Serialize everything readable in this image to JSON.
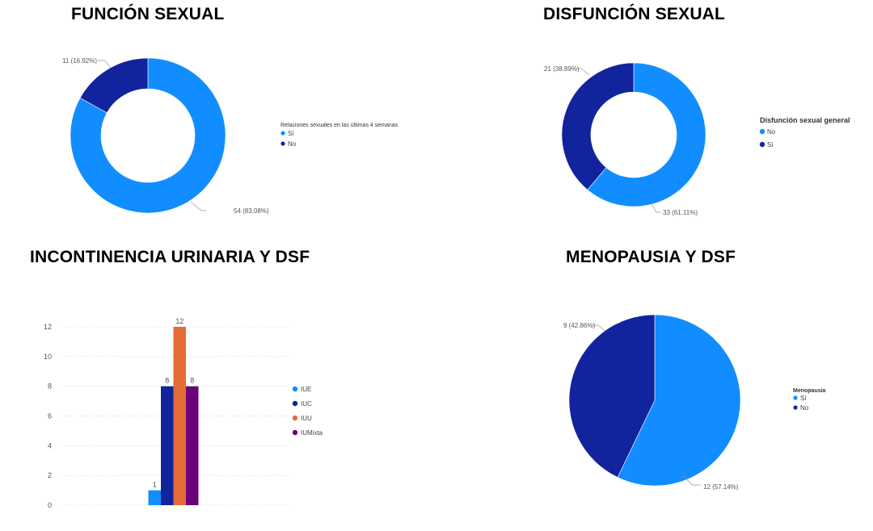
{
  "titles": {
    "funcion": "FUNCIÓN SEXUAL",
    "disfuncion": "DISFUNCIÓN SEXUAL",
    "incontinencia": "INCONTINENCIA URINARIA Y DSF",
    "menopausia": "MENOPAUSIA Y DSF"
  },
  "colors": {
    "light_blue": "#118DFF",
    "dark_blue": "#12239E",
    "orange": "#E66C37",
    "purple": "#6B007B"
  },
  "chart_data": [
    {
      "type": "pie",
      "variant": "donut",
      "title": "FUNCIÓN SEXUAL",
      "legend_title": "Relaciones sexuales en las últimas 4 semanas",
      "slices": [
        {
          "label": "Sí",
          "value": 54,
          "data_label": "54 (83.08%)",
          "color": "#118DFF"
        },
        {
          "label": "No",
          "value": 11,
          "data_label": "11 (16.92%)",
          "color": "#12239E"
        }
      ]
    },
    {
      "type": "pie",
      "variant": "donut",
      "title": "DISFUNCIÓN SEXUAL",
      "legend_title": "Disfunción sexual general",
      "slices": [
        {
          "label": "No",
          "value": 33,
          "data_label": "33 (61.11%)",
          "color": "#118DFF"
        },
        {
          "label": "Sí",
          "value": 21,
          "data_label": "21 (38.89%)",
          "color": "#12239E"
        }
      ]
    },
    {
      "type": "bar",
      "title": "INCONTINENCIA URINARIA Y DSF",
      "series": [
        {
          "name": "IUE",
          "value": 1,
          "color": "#118DFF"
        },
        {
          "name": "IUC",
          "value": 8,
          "color": "#12239E"
        },
        {
          "name": "IUU",
          "value": 12,
          "color": "#E66C37"
        },
        {
          "name": "IUMixta",
          "value": 8,
          "color": "#6B007B"
        }
      ],
      "yticks": [
        "0",
        "2",
        "4",
        "6",
        "8",
        "10",
        "12"
      ],
      "ylim": [
        0,
        12
      ],
      "grid": true,
      "legend": "right"
    },
    {
      "type": "pie",
      "title": "MENOPAUSIA Y DSF",
      "legend_title": "Menopausia",
      "slices": [
        {
          "label": "Sí",
          "value": 12,
          "data_label": "12 (57.14%)",
          "color": "#118DFF"
        },
        {
          "label": "No",
          "value": 9,
          "data_label": "9 (42.86%)",
          "color": "#12239E"
        }
      ]
    }
  ]
}
